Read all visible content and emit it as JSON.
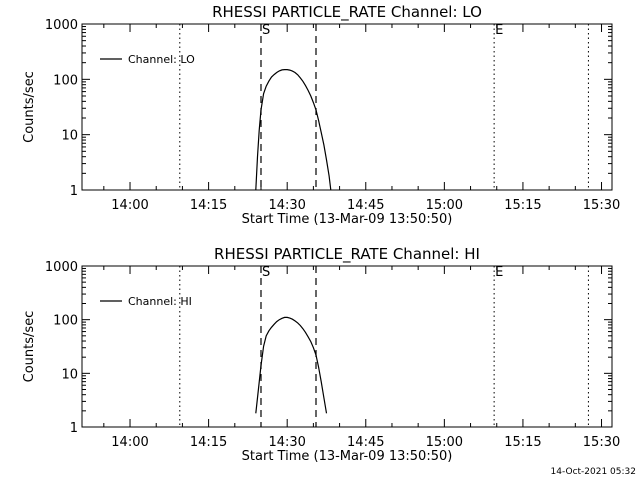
{
  "footer_timestamp": "14-Oct-2021 05:32",
  "chart_data": [
    {
      "type": "line",
      "title": "RHESSI PARTICLE_RATE Channel: LO",
      "xlabel": "Start Time (13-Mar-09 13:50:50)",
      "ylabel": "Counts/sec",
      "yscale": "log",
      "ylim": [
        1,
        1000
      ],
      "xlim": [
        "13:50:50",
        "15:32:00"
      ],
      "x_ticks": [
        "14:00",
        "14:15",
        "14:30",
        "14:45",
        "15:00",
        "15:15",
        "15:30"
      ],
      "y_ticks": [
        "1",
        "10",
        "100",
        "1000"
      ],
      "legend": {
        "placement": "top-left",
        "entries": [
          "Channel: LO"
        ]
      },
      "markers": [
        {
          "label": "S",
          "time": "14:25:00",
          "style": "dashed"
        },
        {
          "label": "",
          "time": "14:35:30",
          "style": "dashed"
        },
        {
          "label": "",
          "time": "14:09:30",
          "style": "dotted"
        },
        {
          "label": "E",
          "time": "15:09:30",
          "style": "dotted"
        },
        {
          "label": "",
          "time": "15:27:30",
          "style": "dotted"
        }
      ],
      "series": [
        {
          "name": "Channel: LO",
          "x": [
            "14:24:00",
            "14:24:20",
            "14:24:40",
            "14:25:00",
            "14:25:30",
            "14:26:00",
            "14:26:30",
            "14:27:00",
            "14:27:30",
            "14:28:00",
            "14:28:30",
            "14:29:00",
            "14:29:30",
            "14:30:00",
            "14:30:30",
            "14:31:00",
            "14:31:30",
            "14:32:00",
            "14:32:30",
            "14:33:00",
            "14:33:30",
            "14:34:00",
            "14:34:30",
            "14:35:00",
            "14:35:30",
            "14:36:00",
            "14:36:30",
            "14:37:00",
            "14:37:30",
            "14:38:00",
            "14:38:20"
          ],
          "y": [
            1,
            4,
            12,
            28,
            55,
            75,
            93,
            110,
            122,
            133,
            142,
            148,
            150,
            150,
            147,
            141,
            133,
            121,
            106,
            92,
            77,
            63,
            50,
            38,
            28,
            18,
            11,
            6.5,
            3.5,
            1.8,
            1
          ]
        }
      ]
    },
    {
      "type": "line",
      "title": "RHESSI PARTICLE_RATE Channel: HI",
      "xlabel": "Start Time (13-Mar-09 13:50:50)",
      "ylabel": "Counts/sec",
      "yscale": "log",
      "ylim": [
        1,
        1000
      ],
      "xlim": [
        "13:50:50",
        "15:32:00"
      ],
      "x_ticks": [
        "14:00",
        "14:15",
        "14:30",
        "14:45",
        "15:00",
        "15:15",
        "15:30"
      ],
      "y_ticks": [
        "1",
        "10",
        "100",
        "1000"
      ],
      "legend": {
        "placement": "top-left",
        "entries": [
          "Channel: HI"
        ]
      },
      "markers": [
        {
          "label": "S",
          "time": "14:25:00",
          "style": "dashed"
        },
        {
          "label": "",
          "time": "14:35:30",
          "style": "dashed"
        },
        {
          "label": "",
          "time": "14:09:30",
          "style": "dotted"
        },
        {
          "label": "E",
          "time": "15:09:30",
          "style": "dotted"
        },
        {
          "label": "",
          "time": "15:27:30",
          "style": "dotted"
        }
      ],
      "series": [
        {
          "name": "Channel: HI",
          "x": [
            "14:24:00",
            "14:24:30",
            "14:25:00",
            "14:25:30",
            "14:26:00",
            "14:26:30",
            "14:27:00",
            "14:27:30",
            "14:28:00",
            "14:28:30",
            "14:29:00",
            "14:29:30",
            "14:30:00",
            "14:30:30",
            "14:31:00",
            "14:31:30",
            "14:32:00",
            "14:32:30",
            "14:33:00",
            "14:33:30",
            "14:34:00",
            "14:34:30",
            "14:35:00",
            "14:35:30",
            "14:36:00",
            "14:36:30",
            "14:37:00",
            "14:37:30"
          ],
          "y": [
            1.8,
            5,
            14,
            32,
            50,
            62,
            72,
            82,
            92,
            100,
            106,
            110,
            110,
            107,
            102,
            95,
            87,
            78,
            68,
            58,
            48,
            39,
            30,
            22,
            13,
            7,
            3.5,
            1.8
          ]
        }
      ]
    }
  ]
}
